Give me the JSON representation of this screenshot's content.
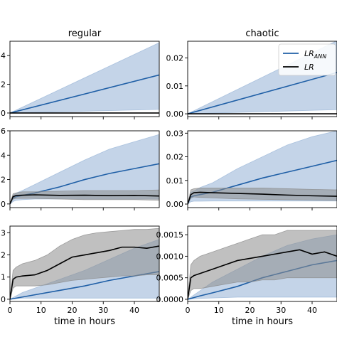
{
  "chart_data": {
    "type": "line",
    "layout": "grid 3 rows x 2 columns",
    "column_titles": [
      "regular",
      "chaotic"
    ],
    "xlabel": "time in hours",
    "xlim": [
      0,
      48
    ],
    "xticks": [
      0,
      10,
      20,
      30,
      40
    ],
    "colors": {
      "ann": "#1f5fa6",
      "ann_band": "#9cb8d8",
      "lr": "#000000",
      "lr_band": "#8c8c8c"
    },
    "legend": {
      "placement": "top-right of chaotic row 1",
      "entries": [
        {
          "name": "LR",
          "sub": "ANN",
          "color": "#1f5fa6"
        },
        {
          "name": "LR",
          "sub": "",
          "color": "#000000"
        }
      ]
    },
    "panels": [
      {
        "id": "r1c1",
        "ylim": [
          -0.25,
          5.0
        ],
        "yticks": [
          0,
          2,
          4
        ],
        "ytick_labels": [
          "0",
          "2",
          "4"
        ],
        "series": [
          {
            "x": [
              0,
              48
            ],
            "y": [
              0,
              2.65
            ],
            "band_low": [
              0,
              0.25
            ],
            "band_high": [
              0,
              4.9
            ]
          },
          {
            "x": [
              0,
              48
            ],
            "y": [
              0,
              0
            ],
            "band_low": [
              0,
              0
            ],
            "band_high": [
              0,
              0
            ]
          }
        ]
      },
      {
        "id": "r1c2",
        "ylim": [
          -0.001,
          0.026
        ],
        "yticks": [
          0,
          0.01,
          0.02
        ],
        "ytick_labels": [
          "0.00",
          "0.01",
          "0.02"
        ],
        "series": [
          {
            "x": [
              0,
              48
            ],
            "y": [
              0,
              0.0148
            ],
            "band_low": [
              0,
              0.0015
            ],
            "band_high": [
              0,
              0.0262
            ]
          },
          {
            "x": [
              0,
              48
            ],
            "y": [
              0,
              0
            ],
            "band_low": [
              0,
              0
            ],
            "band_high": [
              0,
              0
            ]
          }
        ]
      },
      {
        "id": "r2c1",
        "ylim": [
          -0.3,
          6.0
        ],
        "yticks": [
          0,
          2,
          4,
          6
        ],
        "ytick_labels": [
          "0",
          "2",
          "4",
          "6"
        ],
        "series": [
          {
            "x": [
              0,
              1,
              2,
              4,
              8,
              16,
              24,
              32,
              40,
              48
            ],
            "y": [
              0,
              0.5,
              0.6,
              0.7,
              0.9,
              1.4,
              2.0,
              2.5,
              2.9,
              3.3
            ],
            "band_low": [
              0,
              0.2,
              0.3,
              0.35,
              0.4,
              0.4,
              0.4,
              0.4,
              0.4,
              0.4
            ],
            "band_high": [
              0,
              0.7,
              0.9,
              1.1,
              1.6,
              2.6,
              3.6,
              4.5,
              5.1,
              5.7
            ]
          },
          {
            "x": [
              0,
              1,
              2,
              4,
              8,
              16,
              24,
              32,
              40,
              48
            ],
            "y": [
              0,
              0.6,
              0.7,
              0.72,
              0.75,
              0.7,
              0.72,
              0.68,
              0.7,
              0.65
            ],
            "band_low": [
              0,
              0.4,
              0.45,
              0.45,
              0.45,
              0.4,
              0.35,
              0.35,
              0.35,
              0.3
            ],
            "band_high": [
              0,
              0.85,
              0.9,
              1.0,
              1.0,
              1.05,
              1.1,
              1.1,
              1.1,
              1.15
            ]
          }
        ]
      },
      {
        "id": "r2c2",
        "ylim": [
          -0.0015,
          0.031
        ],
        "yticks": [
          0,
          0.01,
          0.02,
          0.03
        ],
        "ytick_labels": [
          "0.00",
          "0.01",
          "0.02",
          "0.03"
        ],
        "series": [
          {
            "x": [
              0,
              1,
              2,
              4,
              8,
              16,
              24,
              32,
              40,
              48
            ],
            "y": [
              0,
              0.003,
              0.0035,
              0.004,
              0.005,
              0.008,
              0.011,
              0.0135,
              0.016,
              0.0185
            ],
            "band_low": [
              0,
              0.001,
              0.0012,
              0.0012,
              0.0013,
              0.0013,
              0.0013,
              0.0013,
              0.0013,
              0.0013
            ],
            "band_high": [
              0,
              0.005,
              0.0055,
              0.007,
              0.009,
              0.015,
              0.02,
              0.025,
              0.0285,
              0.031
            ]
          },
          {
            "x": [
              0,
              1,
              2,
              4,
              8,
              16,
              24,
              32,
              40,
              48
            ],
            "y": [
              0,
              0.004,
              0.0048,
              0.005,
              0.0048,
              0.0045,
              0.0042,
              0.0038,
              0.0035,
              0.0033
            ],
            "band_low": [
              0,
              0.0025,
              0.003,
              0.0028,
              0.0026,
              0.0022,
              0.002,
              0.0018,
              0.0017,
              0.0015
            ],
            "band_high": [
              0,
              0.006,
              0.0065,
              0.0068,
              0.0068,
              0.0068,
              0.0068,
              0.0065,
              0.0062,
              0.006
            ]
          }
        ]
      },
      {
        "id": "r3c1",
        "ylim": [
          -0.1,
          3.3
        ],
        "yticks": [
          0,
          1,
          2,
          3
        ],
        "ytick_labels": [
          "0",
          "1",
          "2",
          "3"
        ],
        "series": [
          {
            "x": [
              0,
              4,
              8,
              16,
              24,
              32,
              40,
              48
            ],
            "y": [
              0,
              0.1,
              0.2,
              0.4,
              0.6,
              0.85,
              1.05,
              1.25
            ],
            "band_low": [
              0,
              0.05,
              0.05,
              0.05,
              0.05,
              0.05,
              0.05,
              0.05
            ],
            "band_high": [
              0,
              0.3,
              0.5,
              0.9,
              1.3,
              1.8,
              2.3,
              2.7
            ]
          },
          {
            "x": [
              0,
              1,
              2,
              4,
              8,
              12,
              16,
              20,
              24,
              28,
              32,
              36,
              40,
              44,
              48
            ],
            "y": [
              0,
              0.9,
              1.0,
              1.05,
              1.1,
              1.3,
              1.6,
              1.9,
              2.0,
              2.1,
              2.2,
              2.35,
              2.35,
              2.3,
              2.4
            ],
            "band_low": [
              0,
              0.5,
              0.6,
              0.6,
              0.6,
              0.65,
              0.75,
              0.85,
              0.9,
              0.95,
              1.0,
              1.05,
              1.05,
              1.1,
              1.1
            ],
            "band_high": [
              0,
              1.3,
              1.45,
              1.6,
              1.75,
              2.0,
              2.4,
              2.7,
              2.9,
              3.0,
              3.05,
              3.1,
              3.15,
              3.15,
              3.2
            ]
          }
        ]
      },
      {
        "id": "r3c2",
        "ylim": [
          -5e-05,
          0.0017
        ],
        "yticks": [
          0,
          0.0005,
          0.001,
          0.0015
        ],
        "ytick_labels": [
          "0.0000",
          "0.0005",
          "0.0010",
          "0.0015"
        ],
        "series": [
          {
            "x": [
              0,
              4,
              8,
              16,
              24,
              32,
              40,
              48
            ],
            "y": [
              0,
              8e-05,
              0.00015,
              0.0003,
              0.0005,
              0.00065,
              0.0008,
              0.0009
            ],
            "band_low": [
              0,
              2e-05,
              3e-05,
              5e-05,
              5e-05,
              5e-05,
              5e-05,
              5e-05
            ],
            "band_high": [
              0,
              0.0002,
              0.0004,
              0.0007,
              0.001,
              0.00125,
              0.0014,
              0.0015
            ]
          },
          {
            "x": [
              0,
              1,
              2,
              4,
              8,
              12,
              16,
              20,
              24,
              28,
              32,
              36,
              40,
              44,
              48
            ],
            "y": [
              0,
              0.0005,
              0.00055,
              0.0006,
              0.0007,
              0.0008,
              0.0009,
              0.00095,
              0.001,
              0.00105,
              0.0011,
              0.00115,
              0.00105,
              0.0011,
              0.001
            ],
            "band_low": [
              0,
              0.0002,
              0.00025,
              0.00025,
              0.0003,
              0.00035,
              0.0004,
              0.0004,
              0.00045,
              0.00045,
              0.0005,
              0.0005,
              0.0005,
              0.0005,
              0.0005
            ],
            "band_high": [
              0,
              0.0008,
              0.0009,
              0.001,
              0.0011,
              0.0012,
              0.0013,
              0.0014,
              0.0015,
              0.0015,
              0.0016,
              0.0016,
              0.0016,
              0.0016,
              0.0016
            ]
          }
        ]
      }
    ]
  }
}
